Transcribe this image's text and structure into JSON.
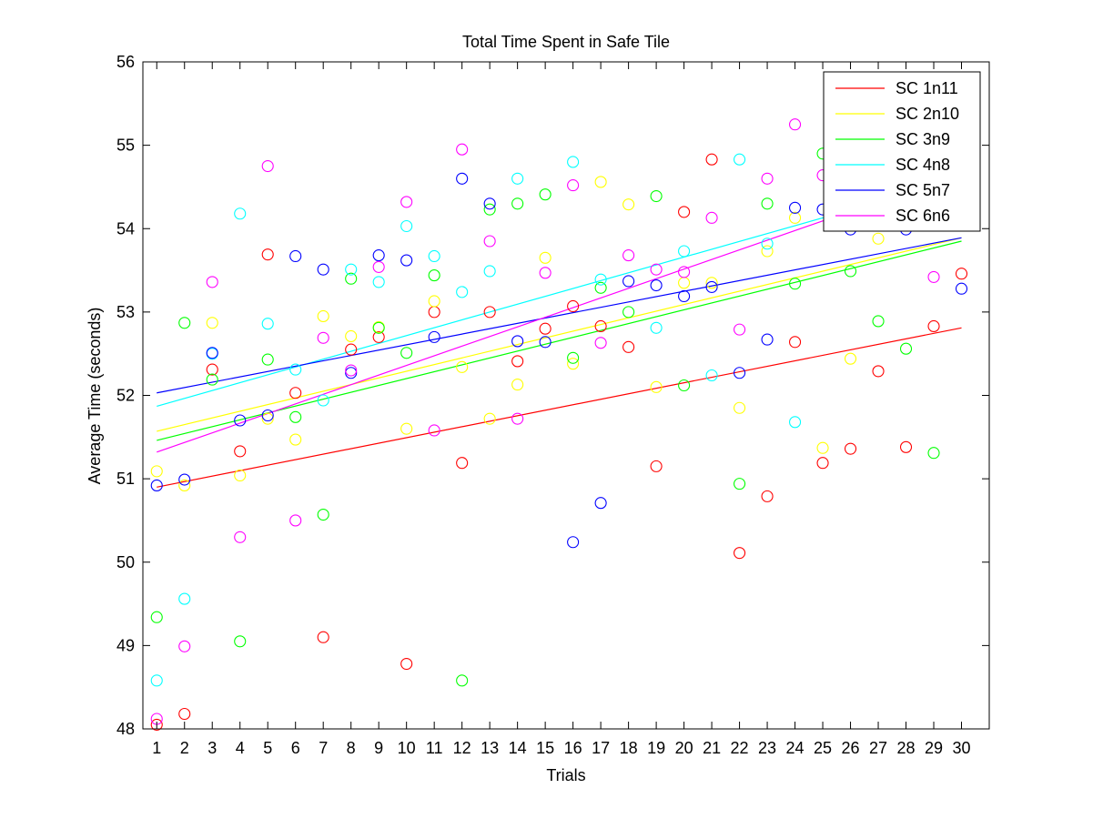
{
  "chart_data": {
    "type": "scatter",
    "title": "Total Time Spent in Safe Tile",
    "xlabel": "Trials",
    "ylabel": "Average Time (seconds)",
    "xlim": [
      0.5,
      31
    ],
    "ylim": [
      48,
      56
    ],
    "xticks": [
      1,
      2,
      3,
      4,
      5,
      6,
      7,
      8,
      9,
      10,
      11,
      12,
      13,
      14,
      15,
      16,
      17,
      18,
      19,
      20,
      21,
      22,
      23,
      24,
      25,
      26,
      27,
      28,
      29,
      30
    ],
    "yticks": [
      48,
      49,
      50,
      51,
      52,
      53,
      54,
      55,
      56
    ],
    "grid": false,
    "legend_position": "top-right",
    "x": [
      1,
      2,
      3,
      4,
      5,
      6,
      7,
      8,
      9,
      10,
      11,
      12,
      13,
      14,
      15,
      16,
      17,
      18,
      19,
      20,
      21,
      22,
      23,
      24,
      25,
      26,
      27,
      28,
      29,
      30
    ],
    "series": [
      {
        "name": "SC 1n11",
        "color": "#ff0000",
        "values": [
          48.05,
          48.18,
          52.31,
          51.33,
          53.69,
          52.03,
          49.1,
          52.55,
          52.7,
          48.78,
          53.0,
          51.19,
          53.0,
          52.41,
          52.8,
          53.07,
          52.83,
          52.58,
          51.15,
          54.2,
          54.83,
          50.11,
          50.79,
          52.64,
          51.19,
          51.36,
          52.29,
          51.38,
          52.83,
          53.46
        ],
        "fit": [
          50.9,
          52.81
        ]
      },
      {
        "name": "SC 2n10",
        "color": "#ffff00",
        "values": [
          51.09,
          50.92,
          52.87,
          51.04,
          51.72,
          51.47,
          52.95,
          52.71,
          52.82,
          51.6,
          53.13,
          52.34,
          51.72,
          52.13,
          53.65,
          52.38,
          54.56,
          54.29,
          52.1,
          53.35,
          53.35,
          51.85,
          53.73,
          54.13,
          51.37,
          52.44,
          53.88,
          null,
          null,
          null
        ],
        "fit": [
          51.57,
          53.89
        ]
      },
      {
        "name": "SC 3n9",
        "color": "#00ff00",
        "values": [
          49.34,
          52.87,
          52.19,
          49.05,
          52.43,
          51.74,
          50.57,
          53.4,
          52.81,
          52.51,
          53.44,
          48.58,
          54.23,
          54.3,
          54.41,
          52.45,
          53.29,
          53.0,
          54.39,
          52.12,
          null,
          50.94,
          54.3,
          53.34,
          54.9,
          53.49,
          52.89,
          52.56,
          51.31,
          null
        ],
        "fit": [
          51.46,
          53.85
        ]
      },
      {
        "name": "SC 4n8",
        "color": "#00ffff",
        "values": [
          48.58,
          49.56,
          52.5,
          54.18,
          52.86,
          52.31,
          51.94,
          53.51,
          53.36,
          54.03,
          53.67,
          53.24,
          53.49,
          54.6,
          null,
          54.8,
          53.39,
          null,
          52.81,
          53.73,
          52.24,
          54.83,
          53.82,
          51.68,
          null,
          null,
          null,
          null,
          null,
          null
        ],
        "fit": [
          51.87,
          54.6
        ]
      },
      {
        "name": "SC 5n7",
        "color": "#0000ff",
        "values": [
          50.92,
          50.99,
          52.51,
          51.7,
          51.76,
          53.67,
          53.51,
          52.27,
          53.68,
          53.62,
          52.7,
          54.6,
          54.3,
          52.65,
          52.64,
          50.24,
          50.71,
          53.37,
          53.32,
          53.19,
          53.3,
          52.27,
          52.67,
          54.25,
          54.23,
          53.99,
          null,
          53.99,
          null,
          53.28
        ],
        "fit": [
          52.03,
          53.89
        ]
      },
      {
        "name": "SC 6n6",
        "color": "#ff00ff",
        "values": [
          48.12,
          48.99,
          53.36,
          50.3,
          54.75,
          50.5,
          52.69,
          52.3,
          53.54,
          54.32,
          51.58,
          54.95,
          53.85,
          51.72,
          53.47,
          54.52,
          52.63,
          53.68,
          53.51,
          53.48,
          54.13,
          52.79,
          54.6,
          55.25,
          54.64,
          null,
          null,
          null,
          53.42,
          null
        ],
        "fit": [
          51.32,
          54.67
        ]
      }
    ]
  }
}
